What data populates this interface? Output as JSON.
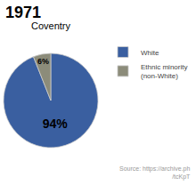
{
  "chart_data": {
    "type": "pie",
    "title": "Coventry",
    "categories": [
      "White",
      "Ethnic minority\n(non-White)"
    ],
    "values": [
      94,
      6
    ],
    "value_labels": [
      "94%",
      "6%"
    ],
    "colors": [
      "#3a5fa0",
      "#8c8c7a"
    ],
    "data_labels": true,
    "legend": "upper right",
    "annotations": [
      "1971",
      "Source: https://archive.ph\n/tcKpT"
    ]
  }
}
